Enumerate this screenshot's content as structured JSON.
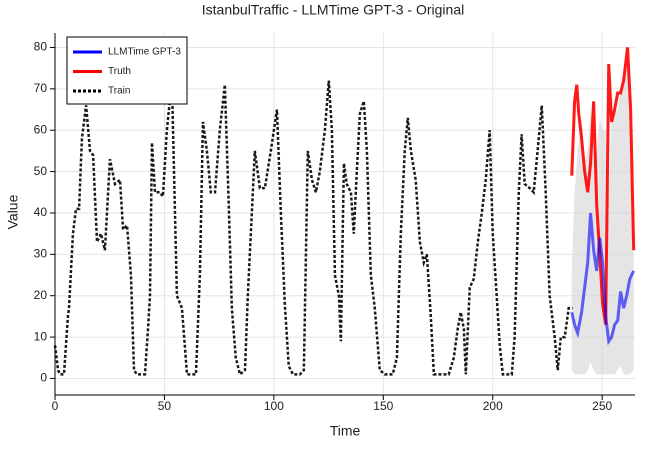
{
  "chart_data": {
    "type": "line",
    "title": "IstanbulTraffic - LLMTime GPT-3 - Original",
    "xlabel": "Time",
    "ylabel": "Value",
    "xlim": [
      0,
      265
    ],
    "ylim": [
      -4,
      83.5
    ],
    "xticks": [
      0,
      50,
      100,
      150,
      200,
      250
    ],
    "yticks": [
      0,
      10,
      20,
      30,
      40,
      50,
      60,
      70,
      80
    ],
    "grid": true,
    "legend": "upper left",
    "series": [
      {
        "name": "LLMTime GPT-3",
        "color": "#0000ff",
        "style": "solid",
        "x": [
          236.1,
          237.4,
          238.8,
          240.6,
          242,
          243.4,
          244.7,
          246.1,
          247.5,
          248.9,
          250.2,
          251.6,
          253,
          254.3,
          255.7,
          257.1,
          258.4,
          259.8,
          261.2,
          262.6,
          264.4
        ],
        "values": [
          16,
          13,
          11,
          16,
          22,
          28,
          40,
          31,
          26,
          34,
          28,
          15,
          9,
          10,
          13,
          14,
          21,
          17,
          20,
          24,
          26
        ]
      },
      {
        "name": "Truth",
        "color": "#ff0000",
        "style": "solid",
        "x": [
          236.1,
          237.4,
          238.4,
          239.3,
          240.6,
          242,
          243.4,
          244.7,
          246.1,
          247.5,
          248.9,
          250.2,
          251.6,
          253,
          254.3,
          255.7,
          257.1,
          258.4,
          259.8,
          261.6,
          263,
          264.4
        ],
        "values": [
          49,
          67,
          71,
          64,
          58,
          50,
          45,
          52,
          67,
          42,
          30,
          18,
          13,
          76,
          62,
          65,
          69,
          69,
          72,
          80,
          65,
          31
        ]
      },
      {
        "name": "Train",
        "color": "#000000",
        "style": "dotted",
        "x": [
          0,
          1.4,
          2.3,
          4.1,
          5.9,
          6.4,
          8.2,
          9.6,
          11,
          12.3,
          14.2,
          16,
          17.4,
          19.2,
          21,
          22.8,
          25.1,
          27.4,
          29.7,
          31.1,
          32.9,
          34.7,
          36.1,
          37.4,
          41.1,
          42.5,
          43.4,
          44.3,
          45.7,
          47.9,
          49.3,
          51.1,
          53.4,
          55.7,
          58,
          60.3,
          64.4,
          66.2,
          67.6,
          69.4,
          71.2,
          73.1,
          75.3,
          77.6,
          79.5,
          80.8,
          82.6,
          84.5,
          86.8,
          88.1,
          91.3,
          93.6,
          95.9,
          98.6,
          101.4,
          103.2,
          105,
          106.8,
          108.7,
          111.9,
          113.7,
          115.5,
          117.4,
          119.2,
          121,
          123.3,
          125.1,
          126.5,
          127.9,
          129.7,
          130.6,
          132,
          133.3,
          135.2,
          136.5,
          137.9,
          139.3,
          141.1,
          142.5,
          144.3,
          146.1,
          148.4,
          150.7,
          154.3,
          156.2,
          158,
          159.8,
          161.2,
          162.6,
          164.8,
          166.7,
          168.5,
          169.9,
          171.7,
          173.1,
          175.8,
          179.9,
          182.2,
          184,
          185.4,
          186.8,
          187.7,
          189.5,
          191.3,
          193.2,
          195,
          196.8,
          198.6,
          200,
          201.8,
          203.2,
          204.6,
          208.7,
          210,
          211.9,
          213.2,
          214.6,
          216.9,
          218.7,
          220.5,
          222.4,
          224.2,
          226,
          228.3,
          229.7,
          231.1,
          232.9,
          234.7,
          236.5
        ],
        "values": [
          8,
          2,
          1,
          1,
          15,
          17,
          35,
          41,
          41,
          58,
          66,
          55,
          54,
          33,
          35,
          31,
          53,
          47,
          48,
          36,
          37,
          25,
          2,
          1,
          1,
          12,
          20,
          57,
          45,
          45,
          44,
          60,
          72,
          20,
          17,
          1,
          1,
          25,
          62,
          55,
          45,
          45,
          60,
          71,
          40,
          17,
          5,
          1,
          2,
          20,
          55,
          46,
          46,
          55,
          65,
          40,
          18,
          3,
          1,
          1,
          2,
          55,
          48,
          45,
          50,
          60,
          72,
          60,
          25,
          20,
          9,
          52,
          47,
          45,
          35,
          50,
          64,
          67,
          55,
          25,
          17,
          2,
          1,
          1,
          5,
          35,
          55,
          63,
          55,
          48,
          33,
          28,
          30,
          15,
          1,
          1,
          1,
          5,
          12,
          16,
          12,
          1,
          22,
          24,
          33,
          40,
          48,
          60,
          35,
          20,
          8,
          1,
          1,
          10,
          45,
          59,
          47,
          46,
          45,
          55,
          66,
          45,
          20,
          10,
          2,
          10,
          10,
          17,
          17
        ]
      }
    ],
    "interval": {
      "color": "#d3d3d3",
      "x": [
        236.1,
        237.4,
        238.8,
        240.6,
        242,
        243.4,
        244.7,
        246.1,
        247.5,
        248.9,
        250.2,
        251.6,
        253,
        254.3,
        255.7,
        257.1,
        258.4,
        259.8,
        261.2,
        262.6,
        264.4
      ],
      "lower": [
        2,
        1,
        1,
        1,
        1,
        2,
        4,
        2,
        1,
        1,
        1,
        1,
        1,
        1,
        1,
        2,
        3,
        1,
        1,
        1,
        2
      ],
      "upper": [
        26,
        45,
        55,
        63,
        52,
        55,
        65,
        60,
        55,
        63,
        60,
        60,
        45,
        64,
        64,
        65,
        70,
        72,
        75,
        74,
        30
      ]
    }
  }
}
